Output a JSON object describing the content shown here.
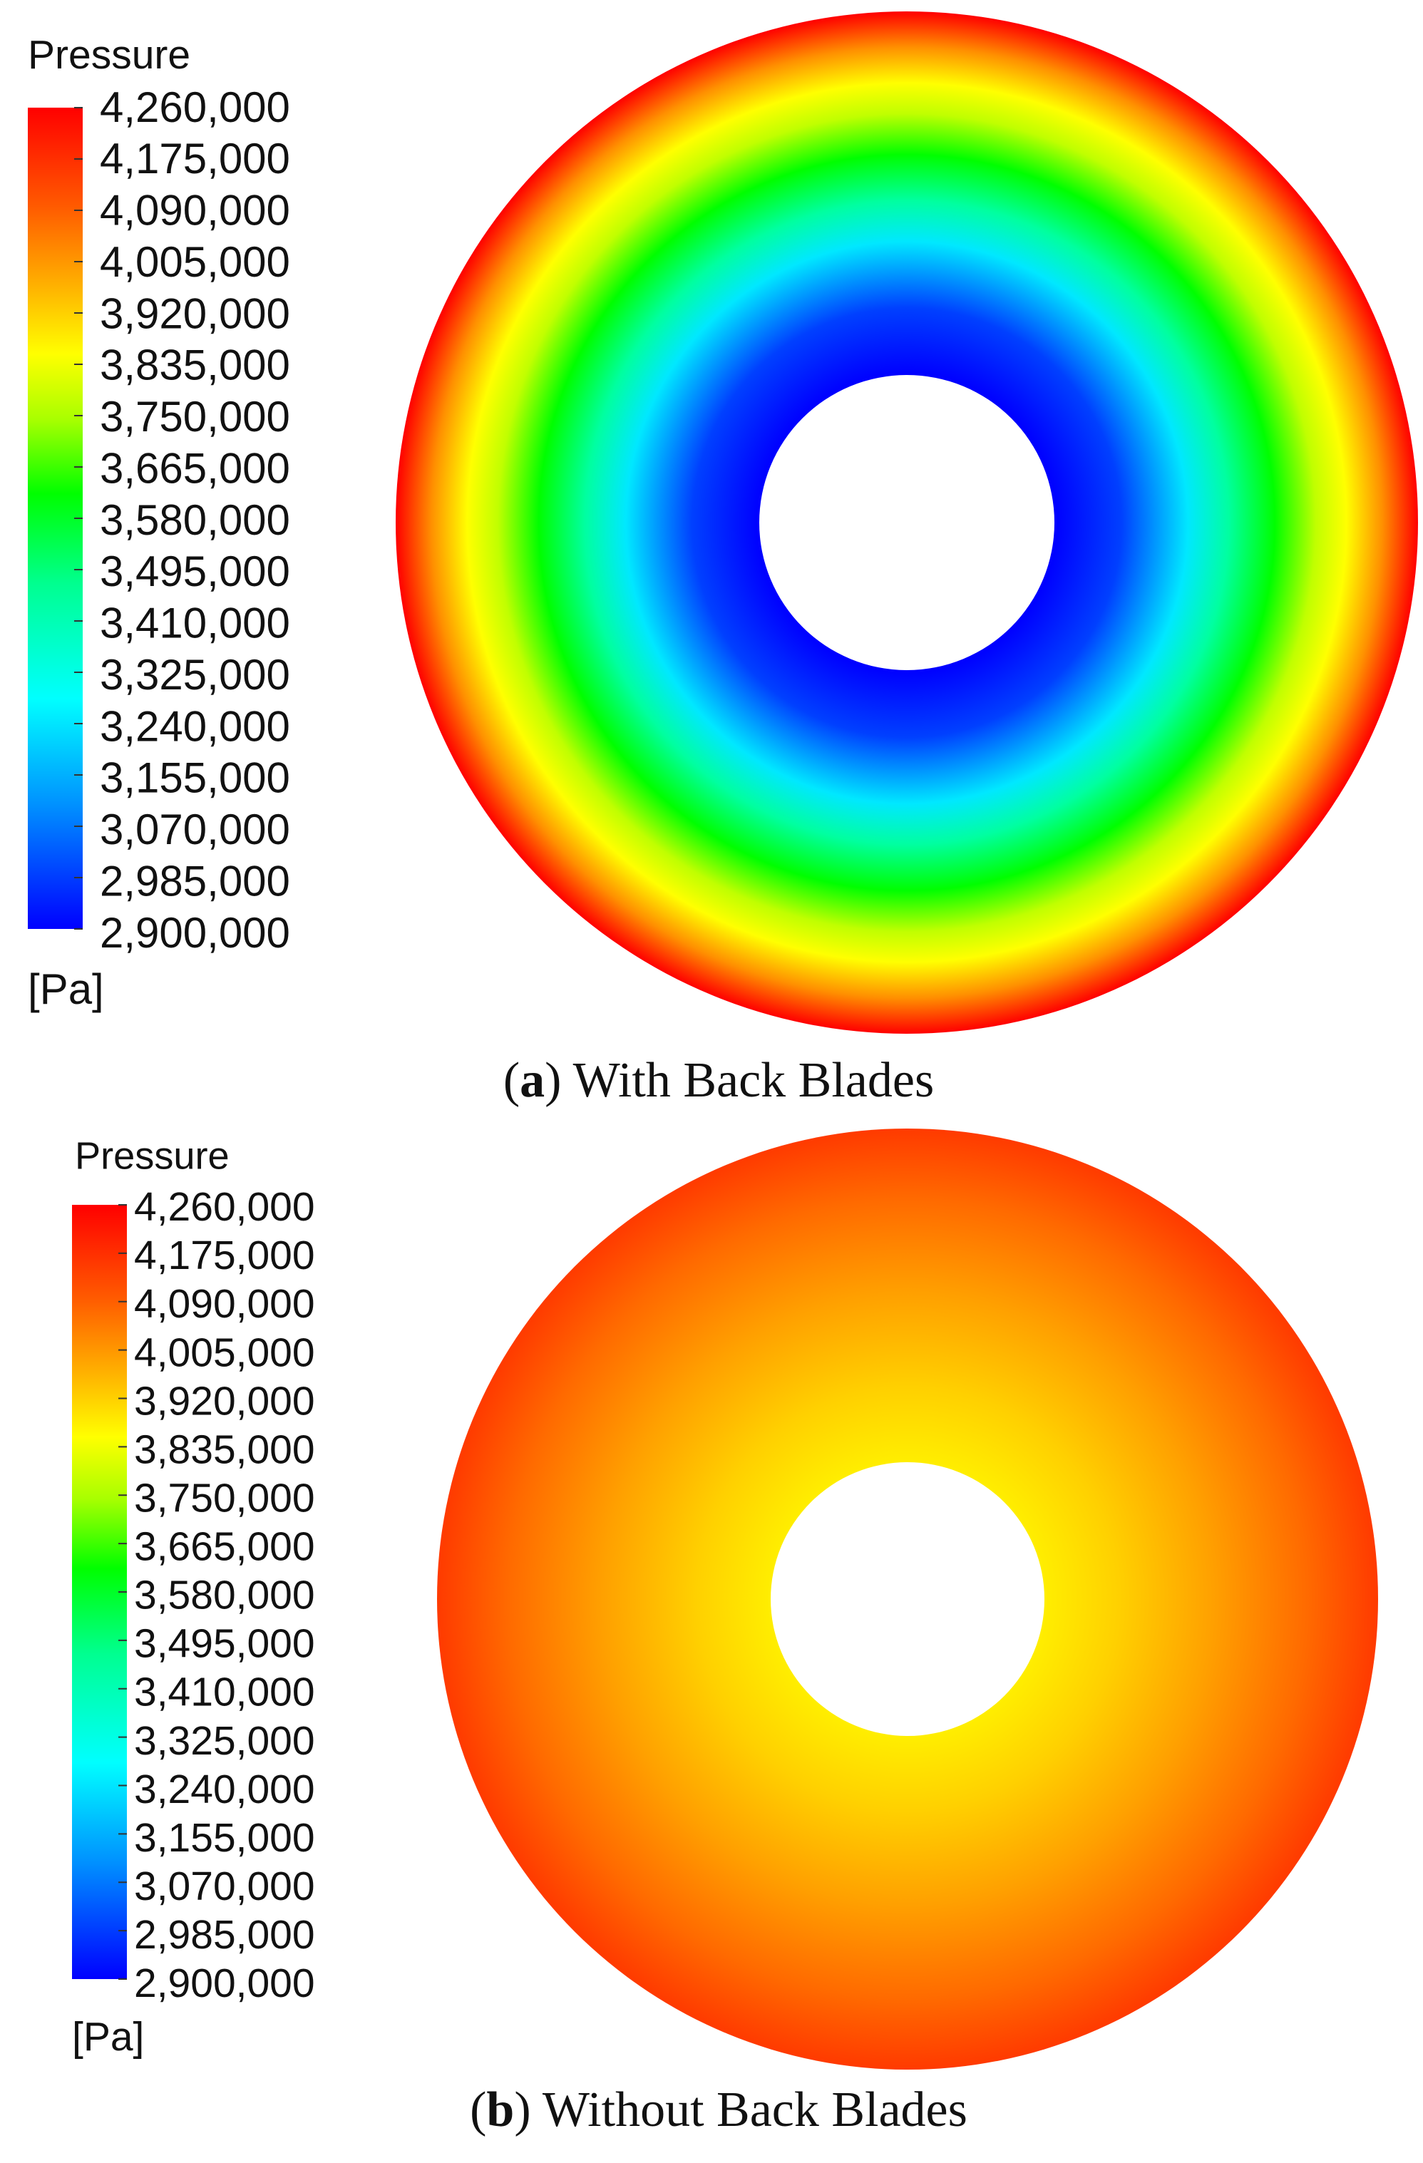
{
  "panels": [
    {
      "legend": {
        "title": "Pressure",
        "ticks": [
          "4,260,000",
          "4,175,000",
          "4,090,000",
          "4,005,000",
          "3,920,000",
          "3,835,000",
          "3,750,000",
          "3,665,000",
          "3,580,000",
          "3,495,000",
          "3,410,000",
          "3,325,000",
          "3,240,000",
          "3,155,000",
          "3,070,000",
          "2,985,000",
          "2,900,000"
        ],
        "unit": "[Pa]"
      },
      "caption": {
        "open": "(",
        "label": "a",
        "close": ")",
        "text": " With Back Blades"
      }
    },
    {
      "legend": {
        "title": "Pressure",
        "ticks": [
          "4,260,000",
          "4,175,000",
          "4,090,000",
          "4,005,000",
          "3,920,000",
          "3,835,000",
          "3,750,000",
          "3,665,000",
          "3,580,000",
          "3,495,000",
          "3,410,000",
          "3,325,000",
          "3,240,000",
          "3,155,000",
          "3,070,000",
          "2,985,000",
          "2,900,000"
        ],
        "unit": "[Pa]"
      },
      "caption": {
        "open": "(",
        "label": "b",
        "close": ")",
        "text": " Without Back Blades"
      }
    }
  ]
}
